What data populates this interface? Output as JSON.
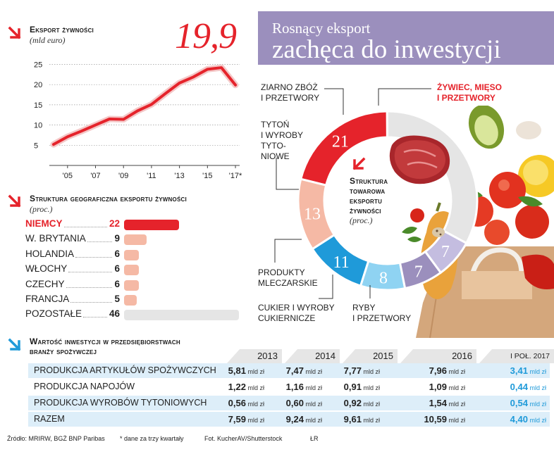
{
  "export_chart": {
    "title": "Eksport żywności",
    "subtitle": "(mld euro)",
    "highlight_value": "19,9"
  },
  "banner": {
    "line1": "Rosnący eksport",
    "line2": "zachęca do inwestycji"
  },
  "geo": {
    "title": "Struktura geograficzna eksportu żywności",
    "subtitle": "(proc.)"
  },
  "ring": {
    "title_lines": [
      "Struktura",
      "towarowa",
      "eksportu",
      "żywności"
    ],
    "subtitle": "(proc.)",
    "labels": {
      "zboz": [
        "ZIARNO ZBÓŻ",
        "I PRZETWORY"
      ],
      "zywiec": [
        "ŻYWIEC, MIĘSO",
        "I PRZETWORY"
      ],
      "tyton": [
        "TYTOŃ",
        "I WYROBY",
        "TYTO-",
        "NIOWE"
      ],
      "mleczarskie": [
        "PRODUKTY",
        "MLECZARSKIE"
      ],
      "cukier": [
        "CUKIER I WYROBY",
        "CUKIERNICZE"
      ],
      "ryby": [
        "RYBY",
        "I PRZETWORY"
      ]
    }
  },
  "investment": {
    "title_lines": [
      "Wartość inwestycji w przedsiębiorstwach",
      "branży spożywczej"
    ],
    "unit": "mld zł",
    "years": [
      "2013",
      "2014",
      "2015",
      "2016",
      "I poł. 2017"
    ],
    "rows": [
      {
        "label": "PRODUKCJA ARTYKUŁÓW SPOŻYWCZYCH",
        "values": [
          "5,81",
          "7,47",
          "7,77",
          "7,96",
          "3,41"
        ]
      },
      {
        "label": "PRODUKCJA NAPOJÓW",
        "values": [
          "1,22",
          "1,16",
          "0,91",
          "1,09",
          "0,44"
        ]
      },
      {
        "label": "PRODUKCJA WYROBÓW TYTONIOWYCH",
        "values": [
          "0,56",
          "0,60",
          "0,92",
          "1,54",
          "0,54"
        ]
      },
      {
        "label": "RAZEM",
        "values": [
          "7,59",
          "9,24",
          "9,61",
          "10,59",
          "4,40"
        ]
      }
    ]
  },
  "footer": {
    "source": "Źródło: MRIRW, BGŻ BNP Paribas",
    "note": "* dane za trzy kwartały",
    "photo": "Fot. KucherAV/Shutterstock",
    "initials": "ŁR"
  },
  "colors": {
    "red": "#e5232b",
    "salmon": "#f5b9a5",
    "blue": "#1f9ad9",
    "lightblue": "#8fd3f2",
    "purple": "#9b8fbd",
    "lilac": "#c4bde0",
    "grey": "#e5e5e5"
  },
  "chart_data": [
    {
      "type": "line",
      "title": "Eksport żywności",
      "subtitle": "(mld euro)",
      "x": [
        2004,
        2005,
        2006,
        2007,
        2008,
        2009,
        2010,
        2011,
        2012,
        2013,
        2014,
        2015,
        2016,
        2017
      ],
      "x_tick_labels": [
        "'05",
        "'07",
        "'09",
        "'11",
        "'13",
        "'15",
        "'17*"
      ],
      "y_ticks": [
        "5",
        "10",
        "15",
        "20",
        "25"
      ],
      "series": [
        {
          "values": [
            5.2,
            7.1,
            8.5,
            10.0,
            11.5,
            11.4,
            13.5,
            15.1,
            17.8,
            20.4,
            21.9,
            23.8,
            24.2,
            19.9
          ]
        }
      ],
      "ylim": [
        0,
        27
      ],
      "grid": true,
      "annotation": "19,9"
    },
    {
      "type": "bar",
      "orientation": "horizontal",
      "title": "Struktura geograficzna eksportu żywności",
      "subtitle": "(proc.)",
      "categories": [
        "NIEMCY",
        "W. BRYTANIA",
        "HOLANDIA",
        "WŁOCHY",
        "CZECHY",
        "FRANCJA",
        "POZOSTAŁE"
      ],
      "values": [
        22,
        9,
        6,
        6,
        6,
        5,
        46
      ],
      "value_labels": [
        "22",
        "9",
        "6",
        "6",
        "6",
        "5",
        "46"
      ]
    },
    {
      "type": "pie",
      "donut": true,
      "title": "Struktura towarowa eksportu żywności",
      "subtitle": "(proc.)",
      "labels": [
        "ŻYWIEC, MIĘSO I PRZETWORY",
        "ZIARNO ZBÓŻ I PRZETWORY",
        "TYTOŃ I WYROBY TYTONIOWE",
        "PRODUKTY MLECZARSKIE",
        "CUKIER I WYROBY CUKIERNICZE",
        "RYBY I PRZETWORY"
      ],
      "values": [
        21,
        13,
        11,
        8,
        7,
        7
      ],
      "value_labels": [
        "21",
        "13",
        "11",
        "8",
        "7",
        "7"
      ]
    }
  ]
}
